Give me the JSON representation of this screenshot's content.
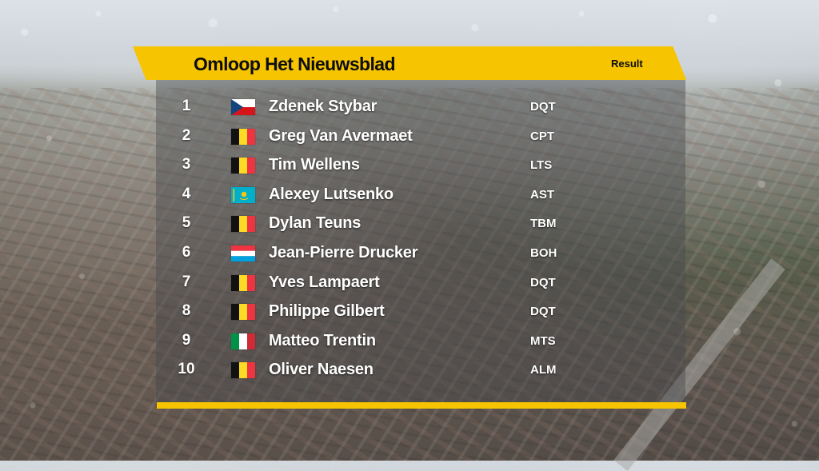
{
  "header": {
    "title": "Omloop Het Nieuwsblad",
    "label": "Result"
  },
  "results": [
    {
      "position": "1",
      "rider": "Zdenek Stybar",
      "team": "DQT",
      "flag": "czech-republic-flag"
    },
    {
      "position": "2",
      "rider": "Greg Van Avermaet",
      "team": "CPT",
      "flag": "belgium-flag"
    },
    {
      "position": "3",
      "rider": "Tim Wellens",
      "team": "LTS",
      "flag": "belgium-flag"
    },
    {
      "position": "4",
      "rider": "Alexey Lutsenko",
      "team": "AST",
      "flag": "kazakhstan-flag"
    },
    {
      "position": "5",
      "rider": "Dylan Teuns",
      "team": "TBM",
      "flag": "belgium-flag"
    },
    {
      "position": "6",
      "rider": "Jean-Pierre Drucker",
      "team": "BOH",
      "flag": "luxembourg-flag"
    },
    {
      "position": "7",
      "rider": "Yves Lampaert",
      "team": "DQT",
      "flag": "belgium-flag"
    },
    {
      "position": "8",
      "rider": "Philippe Gilbert",
      "team": "DQT",
      "flag": "belgium-flag"
    },
    {
      "position": "9",
      "rider": "Matteo Trentin",
      "team": "MTS",
      "flag": "italy-flag"
    },
    {
      "position": "10",
      "rider": "Oliver Naesen",
      "team": "ALM",
      "flag": "belgium-flag"
    }
  ],
  "colors": {
    "accent": "#f6c400",
    "text": "#ffffff",
    "header_text": "#0d0d0d"
  }
}
